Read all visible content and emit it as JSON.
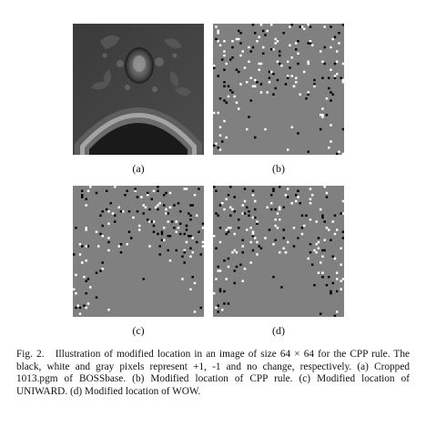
{
  "figure": {
    "panel_labels": [
      "(a)",
      "(b)",
      "(c)",
      "(d)"
    ],
    "caption_prefix": "Fig. 2.",
    "caption_text": "Illustration of modified location in an image of size 64 × 64 for the CPP rule. The black, white and gray pixels represent +1, -1 and no change, respectively. (a) Cropped 1013.pgm of BOSSbase. (b) Modified location of CPP rule. (c) Modified location of UNIWARD. (d) Modified location of WOW."
  },
  "colors": {
    "gray": "#808080",
    "plus_one": "#000000",
    "minus_one": "#ffffff"
  }
}
